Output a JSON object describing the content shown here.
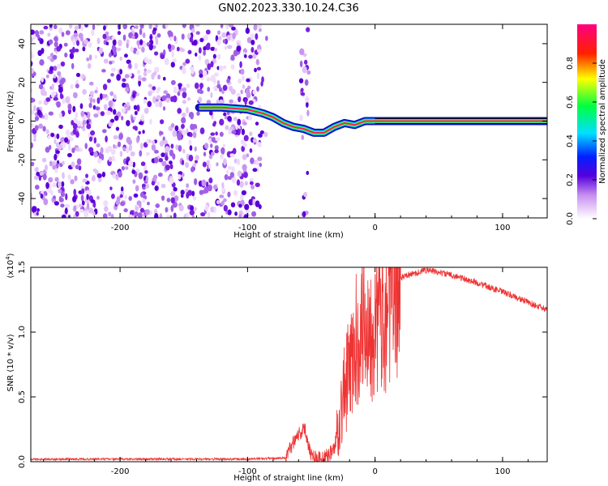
{
  "title": "GN02.2023.330.10.24.C36",
  "colors": {
    "snr_line": "#ee3333",
    "spectro_noise": "#7a20e0",
    "track_core": "#ff2050",
    "track_edge": "#1010c0"
  },
  "chart_data": [
    {
      "type": "heatmap",
      "xlabel": "Height of straight line (km)",
      "ylabel": "Frequency (Hz)",
      "xlim": [
        -270,
        135
      ],
      "ylim": [
        -50,
        50
      ],
      "xticks": [
        -200,
        -100,
        0,
        100
      ],
      "xtick_labels": [
        "-200",
        "-100",
        "0",
        "100"
      ],
      "yticks": [
        -40,
        -20,
        0,
        20,
        40
      ],
      "ytick_labels": [
        "-40",
        "-20",
        "0",
        "20",
        "40"
      ],
      "colorbar": {
        "label": "Normalized spectral amplitude",
        "range": [
          0,
          1
        ],
        "ticks": [
          0.0,
          0.2,
          0.4,
          0.6,
          0.8
        ],
        "tick_labels": [
          "0.0",
          "0.2",
          "0.4",
          "0.6",
          "0.8"
        ]
      },
      "track": [
        {
          "x": -138,
          "y": 7
        },
        {
          "x": -120,
          "y": 7
        },
        {
          "x": -100,
          "y": 6
        },
        {
          "x": -88,
          "y": 4
        },
        {
          "x": -80,
          "y": 2
        },
        {
          "x": -72,
          "y": -1
        },
        {
          "x": -64,
          "y": -3
        },
        {
          "x": -56,
          "y": -4
        },
        {
          "x": -48,
          "y": -6
        },
        {
          "x": -40,
          "y": -6
        },
        {
          "x": -32,
          "y": -3
        },
        {
          "x": -24,
          "y": -1
        },
        {
          "x": -16,
          "y": -2
        },
        {
          "x": -8,
          "y": 0
        },
        {
          "x": 0,
          "y": 0
        },
        {
          "x": 135,
          "y": 0
        }
      ],
      "grid": false
    },
    {
      "type": "line",
      "xlabel": "Height of straight line (km)",
      "ylabel": "SNR (10 * v/v)",
      "scale_label": "(x10",
      "scale_exponent": "4",
      "scale_close": ")",
      "xlim": [
        -270,
        135
      ],
      "ylim": [
        0,
        1.5
      ],
      "xticks": [
        -200,
        -100,
        0,
        100
      ],
      "xtick_labels": [
        "-200",
        "-100",
        "0",
        "100"
      ],
      "yticks": [
        0,
        0.5,
        1.0,
        1.5
      ],
      "ytick_labels": [
        "0.0",
        "0.5",
        "1.0",
        "1.5"
      ],
      "series_envelope": [
        {
          "x": -270,
          "y": 0.02
        },
        {
          "x": -100,
          "y": 0.02
        },
        {
          "x": -70,
          "y": 0.03
        },
        {
          "x": -62,
          "y": 0.2
        },
        {
          "x": -55,
          "y": 0.25
        },
        {
          "x": -50,
          "y": 0.05
        },
        {
          "x": -40,
          "y": 0.02
        },
        {
          "x": -32,
          "y": 0.1
        },
        {
          "x": -24,
          "y": 0.55
        },
        {
          "x": -16,
          "y": 0.85
        },
        {
          "x": -10,
          "y": 1.15
        },
        {
          "x": -4,
          "y": 1.05
        },
        {
          "x": 4,
          "y": 1.15
        },
        {
          "x": 12,
          "y": 1.25
        },
        {
          "x": 20,
          "y": 1.42
        },
        {
          "x": 40,
          "y": 1.48
        },
        {
          "x": 60,
          "y": 1.44
        },
        {
          "x": 80,
          "y": 1.38
        },
        {
          "x": 100,
          "y": 1.31
        },
        {
          "x": 120,
          "y": 1.23
        },
        {
          "x": 135,
          "y": 1.17
        }
      ],
      "grid": false
    }
  ]
}
